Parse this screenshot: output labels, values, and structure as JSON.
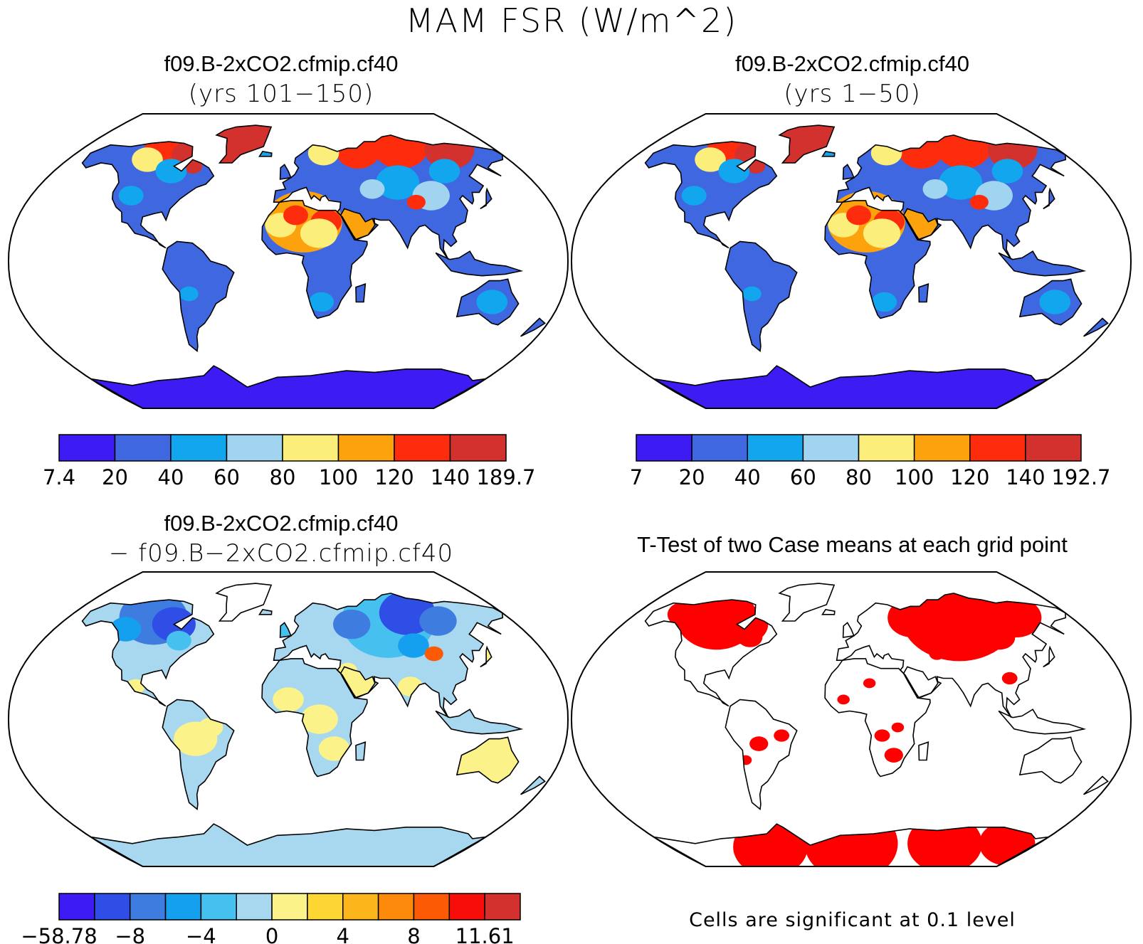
{
  "figure": {
    "title": "MAM FSR (W/m^2)"
  },
  "panels": [
    {
      "title": "f09.B-2xCO2.cfmip.cf40",
      "subtitle": "(yrs 101−150)",
      "colorbar": {
        "colors": [
          "#3c1cf2",
          "#3f68e0",
          "#12a6ee",
          "#a0d4ef",
          "#fbee7a",
          "#fca20d",
          "#fd2c0c",
          "#d3312d"
        ],
        "labels": [
          "7.4",
          "20",
          "40",
          "60",
          "80",
          "100",
          "120",
          "140",
          "189.7"
        ]
      }
    },
    {
      "title": "f09.B-2xCO2.cfmip.cf40",
      "subtitle": "(yrs 1−50)",
      "colorbar": {
        "colors": [
          "#3c1cf2",
          "#3f68e0",
          "#12a6ee",
          "#a0d4ef",
          "#fbee7a",
          "#fca20d",
          "#fd2c0c",
          "#d3312d"
        ],
        "labels": [
          "7",
          "20",
          "40",
          "60",
          "80",
          "100",
          "120",
          "140",
          "192.7"
        ]
      }
    },
    {
      "title": "f09.B-2xCO2.cfmip.cf40",
      "subtitle": "− f09.B−2xCO2.cfmip.cf40",
      "colorbar": {
        "colors": [
          "#3c1cf2",
          "#2f4ee6",
          "#3f7ce0",
          "#14a0ee",
          "#46c0ef",
          "#a8d8ef",
          "#fbf38a",
          "#fcd632",
          "#fdb51c",
          "#fd8a0a",
          "#fd5a06",
          "#f70e0b",
          "#d3312d"
        ],
        "labels": [
          "−58.78",
          "−8",
          "−4",
          "0",
          "4",
          "8",
          "11.61"
        ]
      }
    },
    {
      "title": "T-Test of two Case means at each grid point",
      "note": "Cells are significant at 0.1 level",
      "significant_color": "#ff0000"
    }
  ]
}
